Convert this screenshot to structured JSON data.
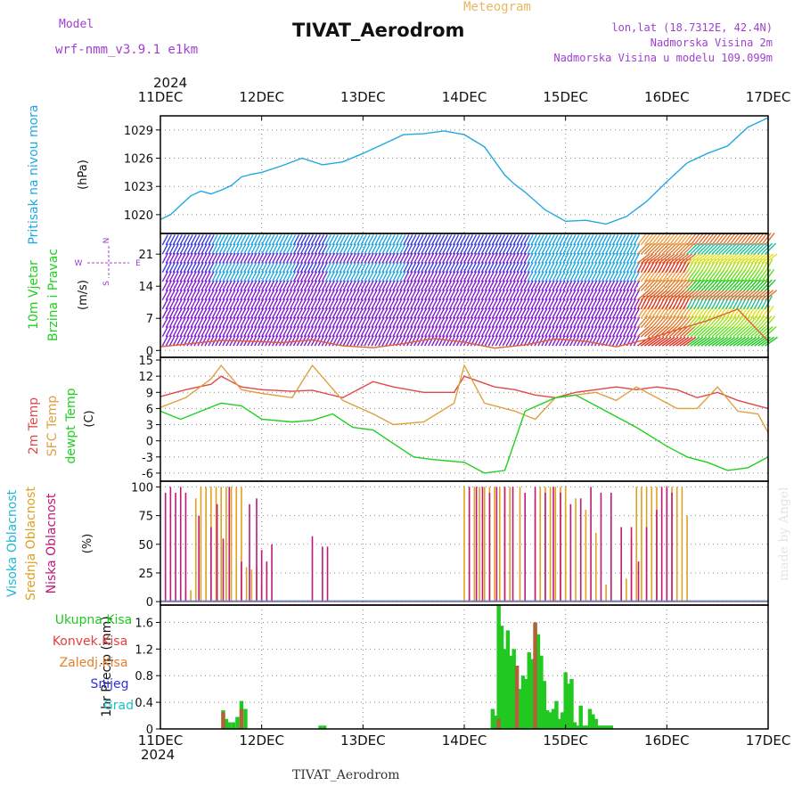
{
  "header": {
    "model_label": "Model",
    "model_name": "wrf-nmm_v3.9.1 e1km",
    "title": "TIVAT_Aerodrom",
    "product": "Meteogram",
    "coords": "lon,lat (18.7312E, 42.4N)",
    "elevation": "Nadmorska Visina 2m",
    "model_elevation": "Nadmorska Visina u modelu 109.099m"
  },
  "x_axis": {
    "year": "2024",
    "ticks": [
      "11DEC",
      "12DEC",
      "13DEC",
      "14DEC",
      "15DEC",
      "16DEC",
      "17DEC"
    ]
  },
  "footer": "TIVAT_Aerodrom",
  "watermark": "made by Angel",
  "colors": {
    "pressure": "#20a8e0",
    "temp": "#e04848",
    "sfc": "#e0a040",
    "dewpt": "#20d020",
    "high_cloud": "#20b8d8",
    "mid_cloud": "#e0a020",
    "low_cloud": "#c01878",
    "total_precip": "#20c820",
    "conv_precip": "#e04040",
    "frozen": "#e08030",
    "snow": "#3030e0",
    "hail": "#20c0c0"
  },
  "chart_data": [
    {
      "type": "line",
      "panel": "pressure",
      "ylabel_colored": "Pritisak na nivou mora",
      "ylabel_unit": "(hPa)",
      "yticks": [
        1020,
        1023,
        1026,
        1029
      ],
      "ylim": [
        1018,
        1030.5
      ],
      "x_unit": "days from 11DEC 00UTC",
      "xlim": [
        0,
        6
      ],
      "series": [
        {
          "x": [
            0,
            0.1,
            0.2,
            0.3,
            0.4,
            0.5,
            0.6,
            0.7,
            0.8,
            0.9,
            1.0,
            1.2,
            1.4,
            1.6,
            1.8,
            2.0,
            2.2,
            2.4,
            2.6,
            2.8,
            3.0,
            3.2,
            3.4,
            3.5,
            3.6,
            3.8,
            4.0,
            4.2,
            4.4,
            4.6,
            4.8,
            5.0,
            5.2,
            5.4,
            5.6,
            5.8,
            6.0
          ],
          "y": [
            1019.5,
            1020.0,
            1021.0,
            1022.0,
            1022.5,
            1022.2,
            1022.6,
            1023.1,
            1024.0,
            1024.3,
            1024.5,
            1025.2,
            1026.0,
            1025.3,
            1025.6,
            1026.5,
            1027.5,
            1028.5,
            1028.6,
            1028.9,
            1028.5,
            1027.2,
            1024.2,
            1023.2,
            1022.4,
            1020.5,
            1019.3,
            1019.4,
            1019.0,
            1019.8,
            1021.4,
            1023.5,
            1025.5,
            1026.5,
            1027.3,
            1029.3,
            1030.3
          ]
        }
      ]
    },
    {
      "type": "line",
      "panel": "wind",
      "ylabel_colored_1": "10m Vjetar",
      "ylabel_colored_2": "Brzina i Pravac",
      "ylabel_unit": "(m/s)",
      "compass_labels": [
        "W",
        "E",
        "N",
        "S"
      ],
      "yticks": [
        0,
        7,
        14,
        21
      ],
      "ylim": [
        -1.5,
        25.5
      ],
      "series": [
        {
          "name": "wind speed",
          "x": [
            0,
            0.3,
            0.6,
            0.9,
            1.2,
            1.5,
            1.8,
            2.1,
            2.4,
            2.7,
            3.0,
            3.3,
            3.6,
            3.9,
            4.2,
            4.5,
            4.8,
            5.1,
            5.4,
            5.7,
            6.0
          ],
          "y": [
            0.8,
            1.5,
            2.2,
            2.0,
            1.7,
            2.3,
            1.0,
            0.6,
            1.5,
            2.6,
            1.8,
            0.5,
            1.2,
            2.5,
            2.0,
            0.8,
            2.4,
            4.5,
            6.5,
            9.0,
            2.0
          ]
        }
      ]
    },
    {
      "type": "line",
      "panel": "temperature",
      "ylabel_colored_1": "2m Temp",
      "ylabel_colored_2": "SFC Temp",
      "ylabel_colored_3": "dewpt Temp",
      "ylabel_unit": "(C)",
      "yticks": [
        -6,
        -3,
        0,
        3,
        6,
        9,
        12,
        15
      ],
      "ylim": [
        -7.5,
        15.5
      ],
      "series": [
        {
          "name": "2m Temp",
          "x": [
            0,
            0.25,
            0.5,
            0.6,
            0.8,
            1.0,
            1.3,
            1.5,
            1.8,
            2.1,
            2.3,
            2.6,
            2.9,
            3.0,
            3.3,
            3.5,
            3.7,
            3.9,
            4.1,
            4.3,
            4.5,
            4.7,
            4.9,
            5.1,
            5.3,
            5.5,
            5.7,
            5.9,
            6.0
          ],
          "y": [
            8.2,
            9.5,
            10.5,
            12.0,
            10.0,
            9.5,
            9.2,
            9.4,
            8.0,
            11.0,
            10.0,
            9.0,
            9.0,
            12.0,
            10.0,
            9.5,
            8.5,
            8.0,
            9.0,
            9.5,
            10.0,
            9.5,
            10.0,
            9.5,
            8.0,
            9.0,
            7.5,
            6.5,
            6.0
          ]
        },
        {
          "name": "SFC Temp",
          "x": [
            0,
            0.25,
            0.5,
            0.6,
            0.8,
            1.0,
            1.3,
            1.5,
            1.8,
            2.1,
            2.3,
            2.6,
            2.9,
            3.0,
            3.2,
            3.5,
            3.7,
            3.9,
            4.1,
            4.3,
            4.5,
            4.7,
            4.9,
            5.1,
            5.3,
            5.5,
            5.7,
            5.9,
            6.0
          ],
          "y": [
            6.2,
            8.0,
            11.5,
            14.0,
            9.5,
            8.8,
            8.0,
            14.0,
            7.5,
            5.0,
            3.0,
            3.5,
            7.0,
            14.0,
            7.0,
            5.5,
            4.0,
            8.0,
            8.5,
            9.0,
            7.5,
            10.0,
            8.0,
            6.0,
            6.0,
            10.0,
            5.5,
            5.0,
            1.5
          ]
        },
        {
          "name": "dewpt Temp",
          "x": [
            0,
            0.2,
            0.4,
            0.6,
            0.8,
            1.0,
            1.3,
            1.5,
            1.7,
            1.9,
            2.1,
            2.3,
            2.5,
            2.7,
            3.0,
            3.2,
            3.4,
            3.6,
            3.9,
            4.1,
            4.3,
            4.5,
            4.7,
            5.0,
            5.2,
            5.4,
            5.6,
            5.8,
            6.0
          ],
          "y": [
            5.5,
            4.0,
            5.5,
            7.0,
            6.5,
            4.0,
            3.5,
            3.8,
            5.0,
            2.5,
            2.0,
            -0.5,
            -3.0,
            -3.5,
            -4.0,
            -6.0,
            -5.5,
            5.5,
            8.0,
            8.5,
            6.5,
            4.5,
            2.5,
            -1.0,
            -3.0,
            -4.0,
            -5.5,
            -5.0,
            -3.0
          ]
        }
      ]
    },
    {
      "type": "bar",
      "panel": "cloud",
      "ylabel_colored_1": "Visoka Oblacnost",
      "ylabel_colored_2": "Srednja Oblacnost",
      "ylabel_colored_3": "Niska Oblacnost",
      "ylabel_unit": "(%)",
      "yticks": [
        0,
        25,
        50,
        75,
        100
      ],
      "ylim": [
        -3,
        105
      ],
      "series": [
        {
          "name": "Srednja Oblacnost",
          "x": [
            0.25,
            0.3,
            0.35,
            0.4,
            0.45,
            0.5,
            0.55,
            0.6,
            0.65,
            0.7,
            0.75,
            0.8,
            0.85,
            0.9,
            0.95,
            1.0,
            3.0,
            3.05,
            3.1,
            3.15,
            3.2,
            3.25,
            3.3,
            3.35,
            3.4,
            3.45,
            3.55,
            3.7,
            3.75,
            3.8,
            3.85,
            3.9,
            3.95,
            4.0,
            4.1,
            4.2,
            4.3,
            4.4,
            4.55,
            4.6,
            4.65,
            4.7,
            4.75,
            4.8,
            4.85,
            4.9,
            5.0,
            5.05,
            5.1,
            5.15,
            5.2
          ],
          "values": [
            10,
            10,
            90,
            100,
            100,
            100,
            100,
            100,
            100,
            100,
            100,
            100,
            30,
            28,
            30,
            15,
            100,
            100,
            100,
            100,
            100,
            100,
            100,
            100,
            100,
            100,
            100,
            90,
            100,
            100,
            100,
            100,
            100,
            100,
            90,
            80,
            60,
            15,
            20,
            20,
            55,
            100,
            100,
            100,
            100,
            100,
            100,
            100,
            100,
            100,
            75
          ]
        },
        {
          "name": "Niska Oblacnost",
          "x": [
            0.05,
            0.1,
            0.15,
            0.2,
            0.25,
            0.38,
            0.5,
            0.56,
            0.62,
            0.68,
            0.8,
            0.88,
            0.95,
            1.0,
            1.05,
            1.1,
            1.5,
            1.6,
            1.65,
            3.05,
            3.12,
            3.18,
            3.25,
            3.32,
            3.4,
            3.48,
            3.6,
            3.7,
            3.8,
            3.88,
            3.95,
            4.05,
            4.15,
            4.25,
            4.35,
            4.45,
            4.55,
            4.65,
            4.72,
            4.8,
            4.9,
            4.95,
            5.0,
            5.05
          ],
          "values": [
            95,
            100,
            95,
            100,
            95,
            75,
            65,
            85,
            55,
            100,
            35,
            85,
            90,
            45,
            35,
            50,
            57,
            48,
            48,
            100,
            100,
            100,
            95,
            100,
            100,
            100,
            95,
            100,
            95,
            100,
            95,
            85,
            90,
            100,
            95,
            95,
            65,
            65,
            35,
            65,
            80,
            100,
            100,
            95
          ]
        },
        {
          "name": "Visoka Oblacnost",
          "x": [],
          "values": []
        }
      ]
    },
    {
      "type": "bar",
      "panel": "precipitation",
      "legend": [
        "Ukupna Kisa",
        "Konvek.Kisa",
        "Zaledj.Kisa",
        "Snijeg",
        "Grad"
      ],
      "ylabel": "1hr Precip (mm)",
      "yticks": [
        0,
        0.4,
        0.8,
        1.2,
        1.6
      ],
      "ylim": [
        0,
        1.86
      ],
      "series": [
        {
          "name": "Ukupna Kisa",
          "x": [
            0.62,
            0.65,
            0.68,
            0.72,
            0.76,
            0.8,
            0.84,
            1.58,
            1.62,
            3.28,
            3.31,
            3.34,
            3.37,
            3.4,
            3.43,
            3.46,
            3.49,
            3.52,
            3.55,
            3.58,
            3.61,
            3.64,
            3.67,
            3.7,
            3.73,
            3.76,
            3.79,
            3.82,
            3.85,
            3.88,
            3.91,
            3.94,
            3.97,
            4.0,
            4.03,
            4.06,
            4.09,
            4.12,
            4.15,
            4.18,
            4.21,
            4.24,
            4.27,
            4.3,
            4.33,
            4.36,
            4.39,
            4.42,
            4.45
          ],
          "values": [
            0.28,
            0.15,
            0.1,
            0.1,
            0.18,
            0.42,
            0.3,
            0.05,
            0.05,
            0.3,
            0.2,
            1.85,
            1.55,
            1.2,
            1.48,
            1.1,
            1.2,
            0.95,
            0.6,
            0.8,
            0.75,
            1.15,
            1.05,
            1.6,
            1.42,
            1.1,
            0.72,
            0.28,
            0.25,
            0.3,
            0.42,
            0.15,
            0.25,
            0.85,
            0.68,
            0.75,
            0.1,
            0.05,
            0.35,
            0.05,
            0.05,
            0.3,
            0.22,
            0.15,
            0.05,
            0.05,
            0.05,
            0.05,
            0.05
          ]
        },
        {
          "name": "Konvek.Kisa",
          "x": [
            0.62,
            0.8,
            3.34,
            3.52,
            3.7
          ],
          "values": [
            0.25,
            0.3,
            0.15,
            0.95,
            1.6
          ]
        },
        {
          "name": "Zaledj.Kisa",
          "x": [],
          "values": []
        },
        {
          "name": "Snijeg",
          "x": [],
          "values": []
        },
        {
          "name": "Grad",
          "x": [],
          "values": []
        }
      ]
    }
  ]
}
